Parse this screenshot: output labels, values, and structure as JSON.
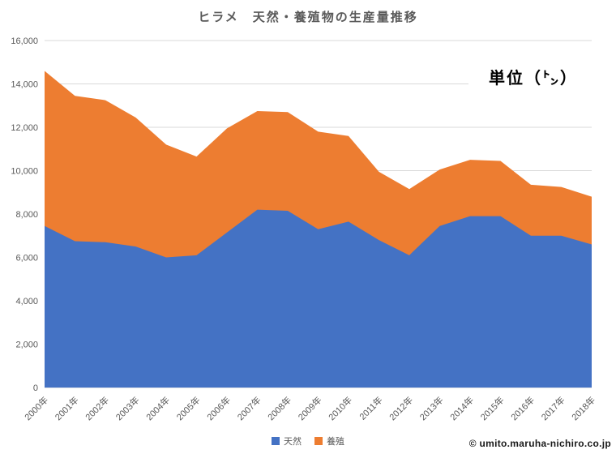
{
  "title": "ヒラメ　天然・養殖物の生産量推移",
  "unit_label": "単位（㌧）",
  "footer": "© umito.maruha-nichiro.co.jp",
  "legend": {
    "items": [
      {
        "label": "天然",
        "color": "#4472C4"
      },
      {
        "label": "養殖",
        "color": "#ED7D31"
      }
    ]
  },
  "colors": {
    "wild_fill": "#4472C4",
    "farmed_fill": "#ED7D31",
    "gridline": "#D9D9D9",
    "axis_line": "#C8CDD3",
    "axis_text": "#595959",
    "title_text": "#595959",
    "annotation_text": "#000000"
  },
  "chart_data": {
    "type": "area",
    "stacked": true,
    "title": "ヒラメ　天然・養殖物の生産量推移",
    "unit": "トン",
    "xlabel": "",
    "ylabel": "",
    "ylim": [
      0,
      16000
    ],
    "ytick_interval": 2000,
    "ytick_labels": [
      "0",
      "2,000",
      "4,000",
      "6,000",
      "8,000",
      "10,000",
      "12,000",
      "14,000",
      "16,000"
    ],
    "grid": true,
    "legend_position": "bottom",
    "categories": [
      "2000年",
      "2001年",
      "2002年",
      "2003年",
      "2004年",
      "2005年",
      "2006年",
      "2007年",
      "2008年",
      "2009年",
      "2010年",
      "2011年",
      "2012年",
      "2013年",
      "2014年",
      "2015年",
      "2016年",
      "2017年",
      "2018年"
    ],
    "series": [
      {
        "name": "天然",
        "color": "#4472C4",
        "values": [
          7450,
          6750,
          6700,
          6500,
          6000,
          6100,
          7150,
          8200,
          8150,
          7300,
          7650,
          6800,
          6100,
          7450,
          7900,
          7900,
          7000,
          7000,
          6600
        ]
      },
      {
        "name": "養殖",
        "color": "#ED7D31",
        "values": [
          7150,
          6700,
          6550,
          5950,
          5200,
          4550,
          4800,
          4550,
          4550,
          4500,
          3950,
          3150,
          3050,
          2600,
          2600,
          2550,
          2350,
          2250,
          2200
        ]
      }
    ],
    "totals": [
      14600,
      13450,
      13250,
      12450,
      11200,
      10650,
      11950,
      12750,
      12700,
      11800,
      11600,
      9950,
      9150,
      10050,
      10500,
      10450,
      9350,
      9250,
      8800
    ]
  }
}
